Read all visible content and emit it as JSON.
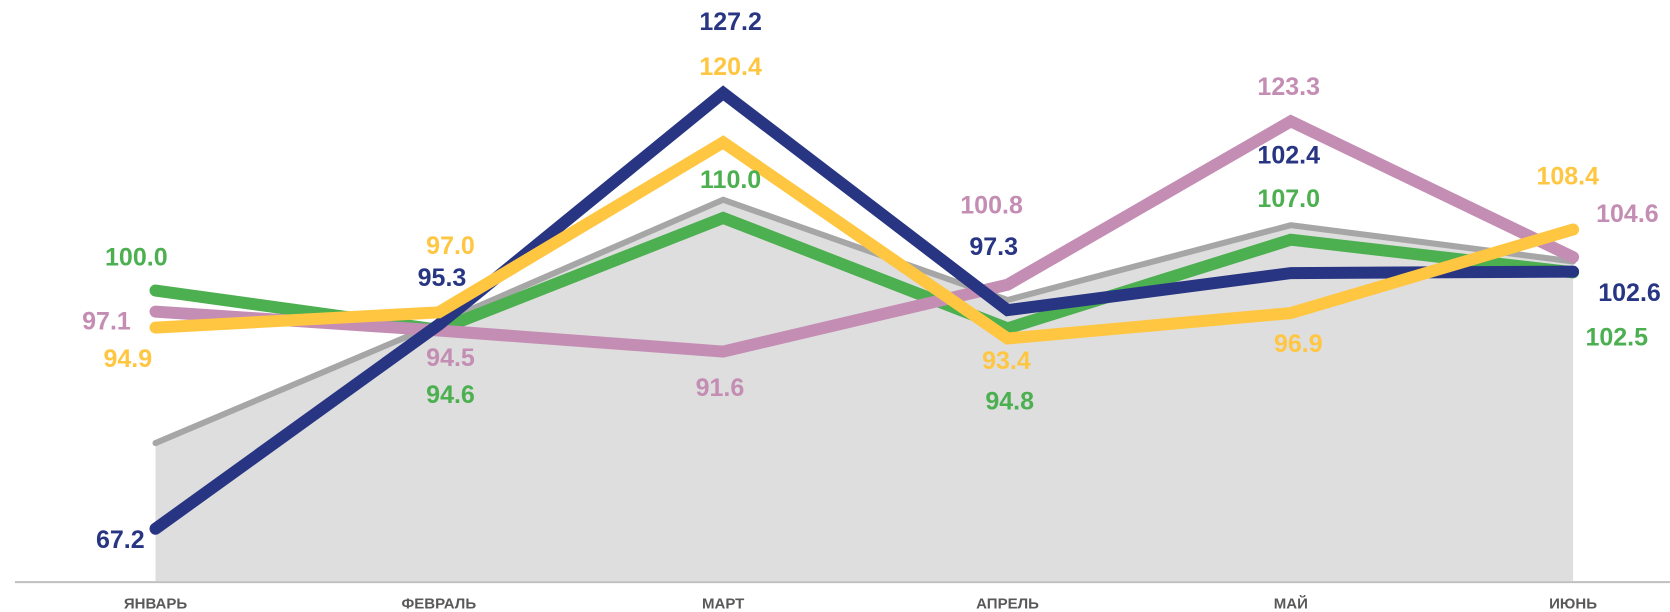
{
  "chart_data": {
    "type": "line",
    "categories": [
      "ЯНВАРЬ",
      "ФЕВРАЛЬ",
      "МАРТ",
      "АПРЕЛЬ",
      "МАЙ",
      "ИЮНЬ"
    ],
    "ylim": [
      60,
      140
    ],
    "series": [
      {
        "color": "#a6a6a6",
        "area": true,
        "area_color": "#dedede",
        "values": [
          79,
          95.5,
          112.5,
          98.7,
          109,
          104
        ]
      },
      {
        "color": "#4caf50",
        "values": [
          100.0,
          94.6,
          110.0,
          94.8,
          107.0,
          102.5
        ],
        "value_labels": [
          "100.0",
          "94.6",
          "110.0",
          "94.8",
          "107.0",
          "102.5"
        ]
      },
      {
        "color": "#c48db4",
        "values": [
          97.1,
          94.5,
          91.6,
          100.8,
          123.3,
          104.6
        ],
        "value_labels": [
          "97.1",
          "94.5",
          "91.6",
          "100.8",
          "123.3",
          "104.6"
        ]
      },
      {
        "color": "#283583",
        "values": [
          67.2,
          95.3,
          127.2,
          97.3,
          102.4,
          102.6
        ],
        "value_labels": [
          "67.2",
          "95.3",
          "127.2",
          "97.3",
          "102.4",
          "102.6"
        ]
      },
      {
        "color": "#ffc642",
        "values": [
          94.9,
          97.0,
          120.4,
          93.4,
          96.9,
          108.4
        ],
        "value_labels": [
          "94.9",
          "97.0",
          "120.4",
          "93.4",
          "96.9",
          "108.4"
        ]
      }
    ]
  }
}
